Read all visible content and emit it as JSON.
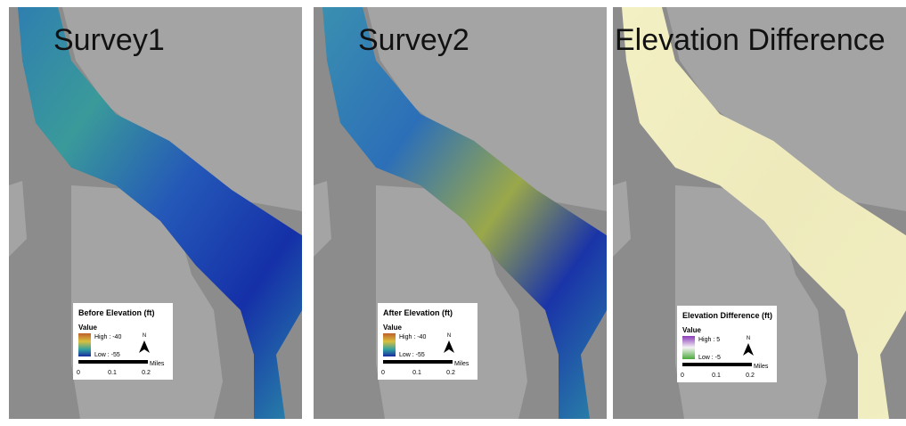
{
  "panels": [
    {
      "title": "Survey1",
      "legend": {
        "title": "Before Elevation (ft)",
        "field": "Value",
        "high": "High : -40",
        "low": "Low : -55",
        "north": "N",
        "units": "Miles",
        "scale": [
          "0",
          "0.1",
          "0.2"
        ]
      }
    },
    {
      "title": "Survey2",
      "legend": {
        "title": "After Elevation (ft)",
        "field": "Value",
        "high": "High : -40",
        "low": "Low : -55",
        "north": "N",
        "units": "Miles",
        "scale": [
          "0",
          "0.1",
          "0.2"
        ]
      }
    },
    {
      "title": "Elevation Difference",
      "legend": {
        "title": "Elevation Difference (ft)",
        "field": "Value",
        "high": "High : 5",
        "low": "Low : -5",
        "north": "N",
        "units": "Miles",
        "scale": [
          "0",
          "0.1",
          "0.2"
        ]
      }
    }
  ]
}
